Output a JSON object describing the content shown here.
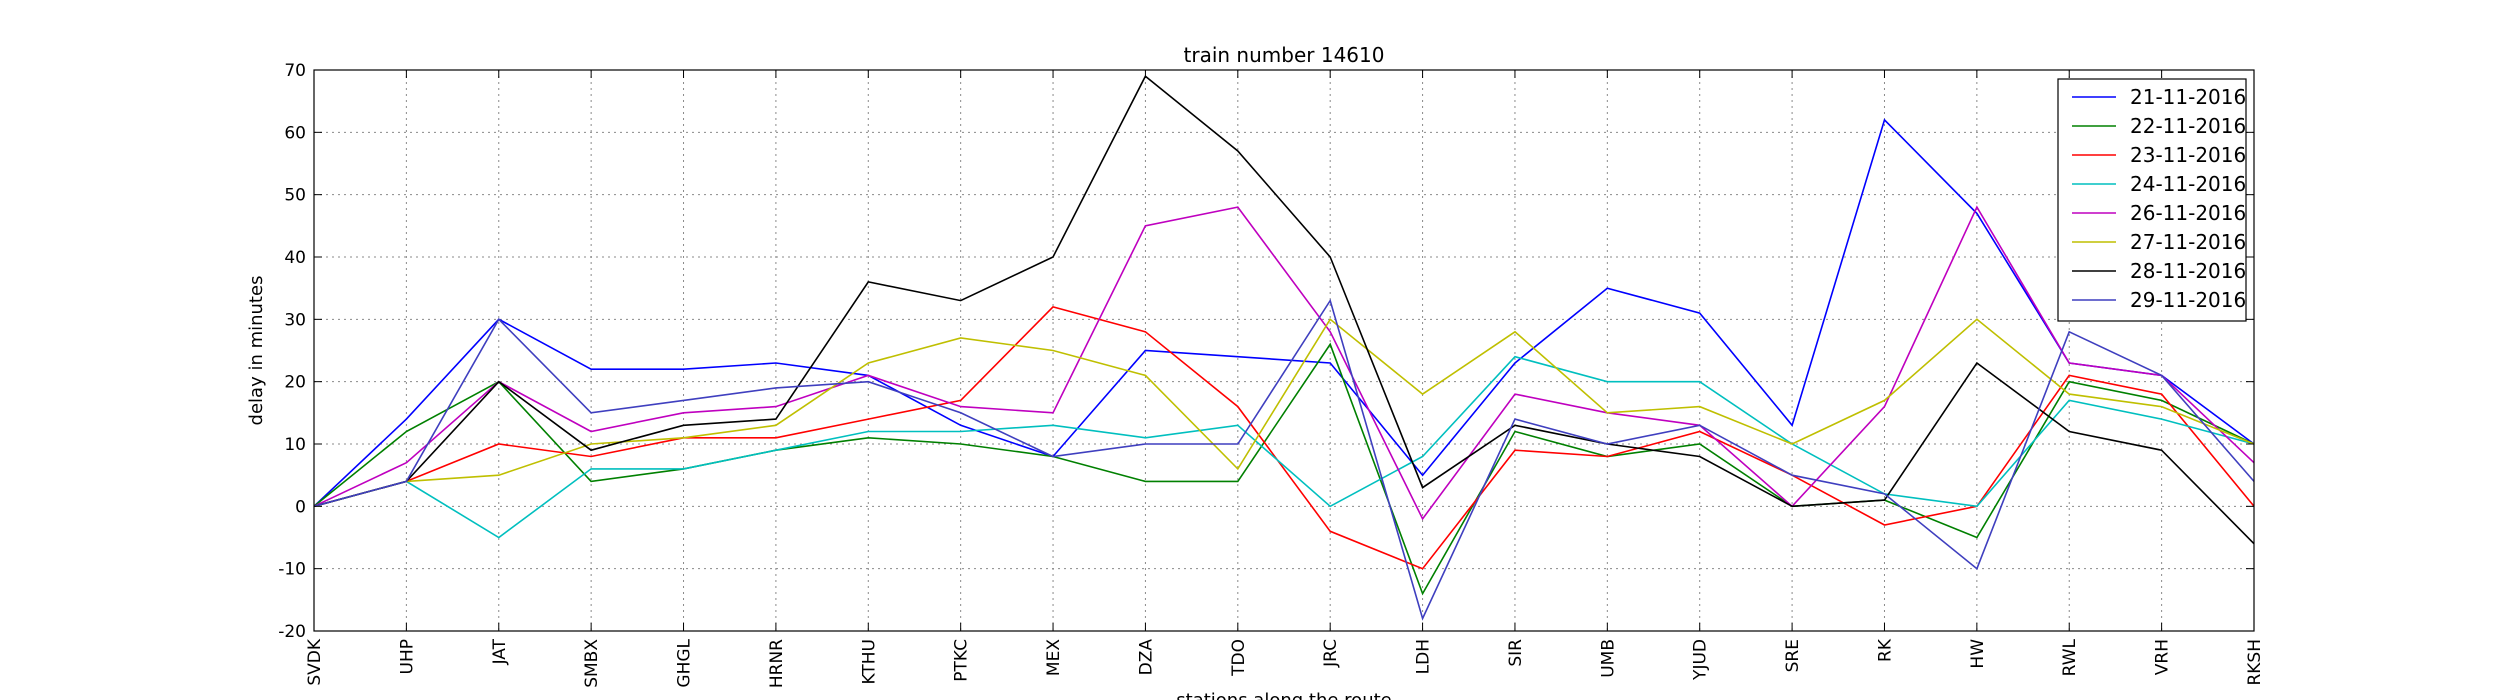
{
  "chart_data": {
    "type": "line",
    "title": "train number 14610",
    "xlabel": "stations along the route",
    "ylabel": "delay in minutes",
    "ylim": [
      -20,
      70
    ],
    "yticks": [
      -20,
      -10,
      0,
      10,
      20,
      30,
      40,
      50,
      60,
      70
    ],
    "grid": true,
    "legend_position": "top-right",
    "categories": [
      "SVDK",
      "UHP",
      "JAT",
      "SMBX",
      "GHGL",
      "HRNR",
      "KTHU",
      "PTKC",
      "MEX",
      "DZA",
      "TDO",
      "JRC",
      "LDH",
      "SIR",
      "UMB",
      "YJUD",
      "SRE",
      "RK",
      "HW",
      "RWL",
      "VRH",
      "RKSH"
    ],
    "series": [
      {
        "name": "21-11-2016",
        "color": "#0000ff",
        "values": [
          0,
          14,
          30,
          22,
          22,
          23,
          21,
          13,
          8,
          25,
          24,
          23,
          5,
          23,
          35,
          31,
          13,
          62,
          47,
          23,
          21,
          10
        ]
      },
      {
        "name": "22-11-2016",
        "color": "#008000",
        "values": [
          0,
          12,
          20,
          4,
          6,
          9,
          11,
          10,
          8,
          4,
          4,
          26,
          -14,
          12,
          8,
          10,
          0,
          1,
          -5,
          20,
          17,
          10
        ]
      },
      {
        "name": "23-11-2016",
        "color": "#ff0000",
        "values": [
          0,
          4,
          10,
          8,
          11,
          11,
          14,
          17,
          32,
          28,
          16,
          -4,
          -10,
          9,
          8,
          12,
          5,
          -3,
          0,
          21,
          18,
          0
        ]
      },
      {
        "name": "24-11-2016",
        "color": "#00bfbf",
        "values": [
          0,
          4,
          -5,
          6,
          6,
          9,
          12,
          12,
          13,
          11,
          13,
          0,
          8,
          24,
          20,
          20,
          10,
          2,
          0,
          17,
          14,
          10
        ]
      },
      {
        "name": "26-11-2016",
        "color": "#bf00bf",
        "values": [
          0,
          7,
          20,
          12,
          15,
          16,
          21,
          16,
          15,
          45,
          48,
          28,
          -2,
          18,
          15,
          13,
          0,
          16,
          48,
          23,
          21,
          7
        ]
      },
      {
        "name": "27-11-2016",
        "color": "#bfbf00",
        "values": [
          0,
          4,
          5,
          10,
          11,
          13,
          23,
          27,
          25,
          21,
          6,
          30,
          18,
          28,
          15,
          16,
          10,
          17,
          30,
          18,
          16,
          10
        ]
      },
      {
        "name": "28-11-2016",
        "color": "#000000",
        "values": [
          0,
          4,
          20,
          9,
          13,
          14,
          36,
          33,
          40,
          69,
          57,
          40,
          3,
          13,
          10,
          8,
          0,
          1,
          23,
          12,
          9,
          -6
        ]
      },
      {
        "name": "29-11-2016",
        "color": "#3f3fbf",
        "values": [
          0,
          4,
          30,
          15,
          17,
          19,
          20,
          15,
          8,
          10,
          10,
          33,
          -18,
          14,
          10,
          13,
          5,
          2,
          -10,
          28,
          21,
          4
        ]
      }
    ]
  }
}
